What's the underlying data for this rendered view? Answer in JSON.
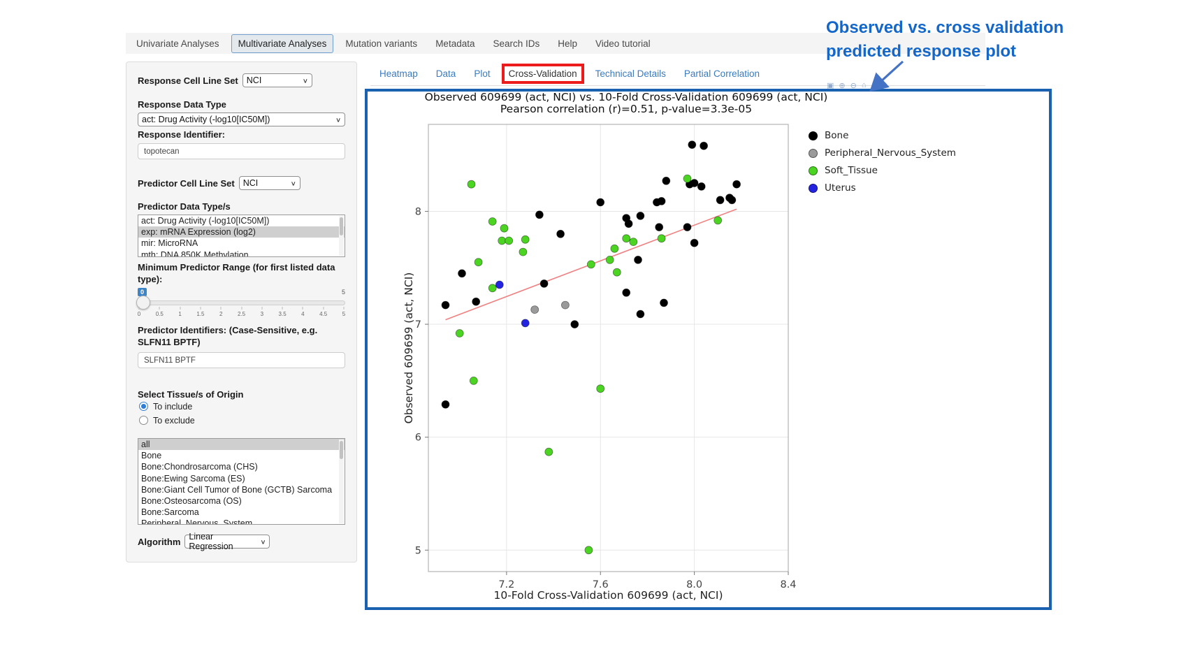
{
  "nav": {
    "items": [
      {
        "label": "Univariate Analyses",
        "selected": false
      },
      {
        "label": "Multivariate Analyses",
        "selected": true
      },
      {
        "label": "Mutation variants",
        "selected": false
      },
      {
        "label": "Metadata",
        "selected": false
      },
      {
        "label": "Search IDs",
        "selected": false
      },
      {
        "label": "Help",
        "selected": false
      },
      {
        "label": "Video tutorial",
        "selected": false
      }
    ]
  },
  "sidebar": {
    "response_cell_line_set": {
      "label": "Response Cell Line Set",
      "value": "NCI"
    },
    "response_data_type": {
      "label": "Response Data Type",
      "value": "act: Drug Activity (-log10[IC50M])"
    },
    "response_identifier": {
      "label": "Response Identifier:",
      "value": "topotecan"
    },
    "predictor_cell_line_set": {
      "label": "Predictor Cell Line Set",
      "value": "NCI"
    },
    "predictor_data_types": {
      "label": "Predictor Data Type/s",
      "options": [
        {
          "label": "act: Drug Activity (-log10[IC50M])",
          "selected": false
        },
        {
          "label": "exp: mRNA Expression (log2)",
          "selected": true
        },
        {
          "label": "mir: MicroRNA",
          "selected": false
        },
        {
          "label": "mth: DNA 850K Methylation",
          "selected": false
        }
      ]
    },
    "min_predictor_range": {
      "label": "Minimum Predictor Range (for first listed data type):",
      "value": "0",
      "max_label": "5",
      "ticks": [
        "0",
        "0.5",
        "1",
        "1.5",
        "2",
        "2.5",
        "3",
        "3.5",
        "4",
        "4.5",
        "5"
      ]
    },
    "predictor_identifiers": {
      "label": "Predictor Identifiers: (Case-Sensitive, e.g. SLFN11 BPTF)",
      "value": "SLFN11 BPTF"
    },
    "tissue": {
      "label": "Select Tissue/s of Origin",
      "radios": [
        {
          "label": "To include",
          "selected": true
        },
        {
          "label": "To exclude",
          "selected": false
        }
      ],
      "options": [
        {
          "label": "all",
          "selected": true
        },
        {
          "label": "Bone",
          "selected": false
        },
        {
          "label": "Bone:Chondrosarcoma (CHS)",
          "selected": false
        },
        {
          "label": "Bone:Ewing Sarcoma (ES)",
          "selected": false
        },
        {
          "label": "Bone:Giant Cell Tumor of Bone (GCTB) Sarcoma",
          "selected": false
        },
        {
          "label": "Bone:Osteosarcoma (OS)",
          "selected": false
        },
        {
          "label": "Bone:Sarcoma",
          "selected": false
        },
        {
          "label": "Peripheral_Nervous_System",
          "selected": false
        }
      ]
    },
    "algorithm": {
      "label": "Algorithm",
      "value": "Linear Regression"
    }
  },
  "main": {
    "tabs": [
      {
        "label": "Heatmap",
        "active": false
      },
      {
        "label": "Data",
        "active": false
      },
      {
        "label": "Plot",
        "active": false
      },
      {
        "label": "Cross-Validation",
        "active": true,
        "highlighted": true
      },
      {
        "label": "Technical Details",
        "active": false
      },
      {
        "label": "Partial Correlation",
        "active": false
      }
    ],
    "modebar_icons": [
      {
        "name": "camera-icon",
        "glyph": "▣"
      },
      {
        "name": "zoom-in-icon",
        "glyph": "⊕"
      },
      {
        "name": "zoom-out-icon",
        "glyph": "⊖"
      },
      {
        "name": "home-icon",
        "glyph": "⌂"
      }
    ]
  },
  "annotation": {
    "heading_line1": "Observed vs. cross validation",
    "heading_line2": "predicted response plot",
    "heading_color": "#1467c8",
    "arrow_color": "#4472c4",
    "highlight_box_color": "#ed1c1c",
    "frame_color": "#1a62b0"
  },
  "chart_data": {
    "type": "scatter",
    "title": "Observed 609699 (act, NCI) vs. 10-Fold Cross-Validation 609699 (act, NCI)",
    "subtitle": "Pearson correlation (r)=0.51, p-value=3.3e-05",
    "xlabel": "10-Fold Cross-Validation 609699 (act, NCI)",
    "ylabel": "Observed 609699 (act, NCI)",
    "xlim": [
      6.867,
      8.4
    ],
    "ylim": [
      4.81,
      8.77
    ],
    "xticks": [
      7.2,
      7.6,
      8.0,
      8.4
    ],
    "yticks": [
      5,
      6,
      7,
      8
    ],
    "grid": true,
    "legend_position": "right",
    "regression_line": {
      "x1": 6.94,
      "y1": 7.04,
      "x2": 8.18,
      "y2": 8.02,
      "color": "#f28080"
    },
    "series": [
      {
        "name": "Bone",
        "color": "#000000",
        "points": [
          [
            6.94,
            7.17
          ],
          [
            7.07,
            7.2
          ],
          [
            7.01,
            7.45
          ],
          [
            6.94,
            6.29
          ],
          [
            7.34,
            7.97
          ],
          [
            7.43,
            7.8
          ],
          [
            7.36,
            7.36
          ],
          [
            7.49,
            7.0
          ],
          [
            7.6,
            8.08
          ],
          [
            7.71,
            7.94
          ],
          [
            7.72,
            7.89
          ],
          [
            7.77,
            7.96
          ],
          [
            7.76,
            7.57
          ],
          [
            7.71,
            7.28
          ],
          [
            7.77,
            7.09
          ],
          [
            7.87,
            7.19
          ],
          [
            7.84,
            8.08
          ],
          [
            7.86,
            8.09
          ],
          [
            7.85,
            7.86
          ],
          [
            7.97,
            7.86
          ],
          [
            7.88,
            8.27
          ],
          [
            7.98,
            8.24
          ],
          [
            8.0,
            8.25
          ],
          [
            8.03,
            8.22
          ],
          [
            7.99,
            8.59
          ],
          [
            8.04,
            8.58
          ],
          [
            8.18,
            8.24
          ],
          [
            8.11,
            8.1
          ],
          [
            8.15,
            8.12
          ],
          [
            8.16,
            8.1
          ],
          [
            8.0,
            7.72
          ]
        ]
      },
      {
        "name": "Peripheral_Nervous_System",
        "color": "#9a9a9a",
        "points": [
          [
            7.32,
            7.13
          ],
          [
            7.45,
            7.17
          ]
        ]
      },
      {
        "name": "Soft_Tissue",
        "color": "#4cd422",
        "points": [
          [
            7.05,
            8.24
          ],
          [
            7.14,
            7.91
          ],
          [
            7.19,
            7.85
          ],
          [
            7.18,
            7.74
          ],
          [
            7.21,
            7.74
          ],
          [
            7.28,
            7.75
          ],
          [
            7.27,
            7.64
          ],
          [
            7.08,
            7.55
          ],
          [
            7.14,
            7.32
          ],
          [
            7.0,
            6.92
          ],
          [
            7.06,
            6.5
          ],
          [
            7.38,
            5.87
          ],
          [
            7.55,
            5.0
          ],
          [
            7.56,
            7.53
          ],
          [
            7.64,
            7.57
          ],
          [
            7.66,
            7.67
          ],
          [
            7.67,
            7.46
          ],
          [
            7.71,
            7.76
          ],
          [
            7.74,
            7.73
          ],
          [
            7.86,
            7.76
          ],
          [
            7.6,
            6.43
          ],
          [
            7.97,
            8.29
          ],
          [
            8.1,
            7.92
          ]
        ]
      },
      {
        "name": "Uterus",
        "color": "#2424e0",
        "points": [
          [
            7.17,
            7.35
          ],
          [
            7.28,
            7.01
          ]
        ]
      }
    ]
  }
}
